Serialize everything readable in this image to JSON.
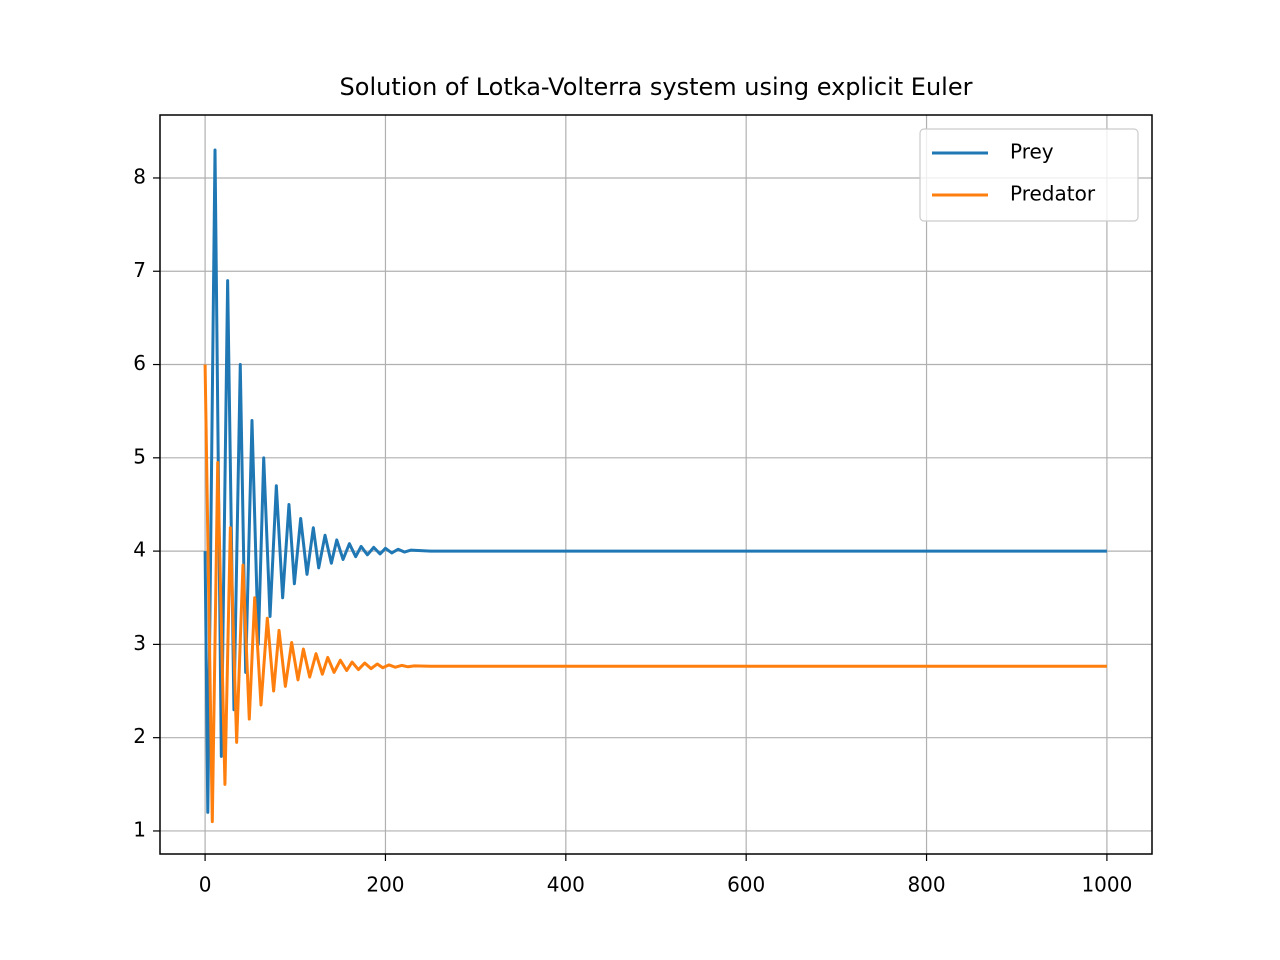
{
  "chart_data": {
    "type": "line",
    "title": "Solution of Lotka-Volterra system using explicit Euler",
    "xlim": [
      -50,
      1050
    ],
    "xticks": [
      0,
      200,
      400,
      600,
      800,
      1000
    ],
    "ylim": [
      0.753,
      8.675
    ],
    "yticks": [
      1,
      2,
      3,
      4,
      5,
      6,
      7,
      8
    ],
    "grid": true,
    "legend": "upper right",
    "series": [
      {
        "name": "Prey",
        "color": "#1f77b4",
        "x": [
          0,
          3,
          11,
          18,
          25,
          32,
          39,
          45,
          52,
          59,
          65,
          72,
          79,
          86,
          93,
          99,
          106,
          113,
          120,
          126,
          133,
          140,
          146,
          153,
          160,
          167,
          173,
          180,
          187,
          194,
          200,
          207,
          214,
          221,
          228,
          250,
          1000
        ],
        "values": [
          4.0,
          1.2,
          8.3,
          1.8,
          6.9,
          2.3,
          6.0,
          2.7,
          5.4,
          3.0,
          5.0,
          3.3,
          4.7,
          3.5,
          4.5,
          3.65,
          4.35,
          3.75,
          4.25,
          3.82,
          4.17,
          3.87,
          4.12,
          3.91,
          4.08,
          3.94,
          4.05,
          3.96,
          4.04,
          3.97,
          4.03,
          3.98,
          4.02,
          3.99,
          4.01,
          4.0,
          4.0
        ]
      },
      {
        "name": "Predator",
        "color": "#ff7f0e",
        "x": [
          0,
          8,
          14,
          22,
          28,
          35,
          42,
          49,
          55,
          62,
          69,
          76,
          82,
          89,
          96,
          103,
          109,
          116,
          123,
          130,
          136,
          143,
          150,
          157,
          163,
          170,
          177,
          184,
          191,
          197,
          204,
          211,
          218,
          225,
          232,
          250,
          1000
        ],
        "values": [
          6.0,
          1.1,
          4.95,
          1.5,
          4.25,
          1.95,
          3.85,
          2.2,
          3.5,
          2.35,
          3.28,
          2.5,
          3.15,
          2.55,
          3.02,
          2.62,
          2.95,
          2.65,
          2.9,
          2.68,
          2.86,
          2.7,
          2.83,
          2.72,
          2.81,
          2.73,
          2.8,
          2.74,
          2.79,
          2.75,
          2.78,
          2.755,
          2.775,
          2.76,
          2.77,
          2.765,
          2.765
        ]
      }
    ]
  }
}
